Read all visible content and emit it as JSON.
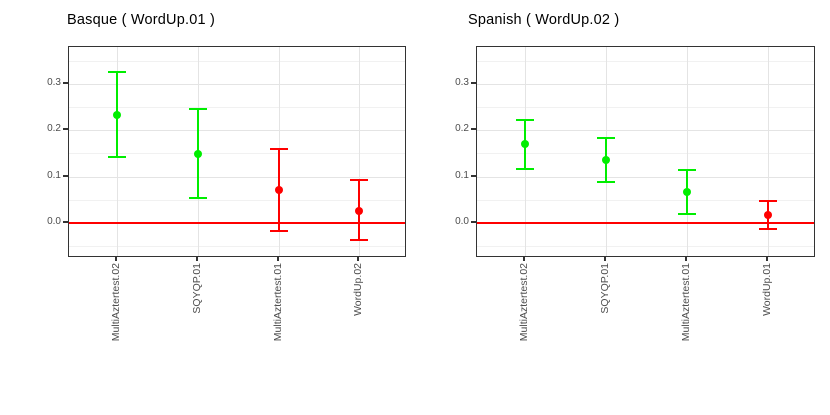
{
  "palette": {
    "green": "#00EE00",
    "red": "#FF0000"
  },
  "chart_data": [
    {
      "type": "scatter",
      "title": "Basque ( WordUp.01 )",
      "categories": [
        "MultiAztertest.02",
        "SQYQP.01",
        "MultiAztertest.01",
        "WordUp.02"
      ],
      "series": [
        {
          "name": "effect estimate with confidence interval",
          "values": [
            0.233,
            0.149,
            0.071,
            0.026
          ],
          "ci_low": [
            0.142,
            0.054,
            -0.017,
            -0.037
          ],
          "ci_high": [
            0.327,
            0.245,
            0.16,
            0.092
          ],
          "point_colors": [
            "green",
            "green",
            "red",
            "red"
          ]
        }
      ],
      "xlabel": "",
      "ylabel": "",
      "yticks": [
        0.0,
        0.1,
        0.2,
        0.3
      ],
      "yticklabels": [
        "0.0",
        "0.1",
        "0.2",
        "0.3"
      ],
      "ylim": [
        -0.076,
        0.38
      ],
      "grid": "on",
      "legend": "none",
      "reference_line": {
        "y": 0.0,
        "color": "#FF0000"
      }
    },
    {
      "type": "scatter",
      "title": "Spanish ( WordUp.02 )",
      "categories": [
        "MultiAztertest.02",
        "SQYQP.01",
        "MultiAztertest.01",
        "WordUp.01"
      ],
      "series": [
        {
          "name": "effect estimate with confidence interval",
          "values": [
            0.17,
            0.136,
            0.067,
            0.018
          ],
          "ci_low": [
            0.116,
            0.088,
            0.019,
            -0.014
          ],
          "ci_high": [
            0.223,
            0.184,
            0.114,
            0.048
          ],
          "point_colors": [
            "green",
            "green",
            "green",
            "red"
          ]
        }
      ],
      "xlabel": "",
      "ylabel": "",
      "yticks": [
        0.0,
        0.1,
        0.2,
        0.3
      ],
      "yticklabels": [
        "0.0",
        "0.1",
        "0.2",
        "0.3"
      ],
      "ylim": [
        -0.076,
        0.38
      ],
      "grid": "on",
      "legend": "none",
      "reference_line": {
        "y": 0.0,
        "color": "#FF0000"
      }
    }
  ]
}
